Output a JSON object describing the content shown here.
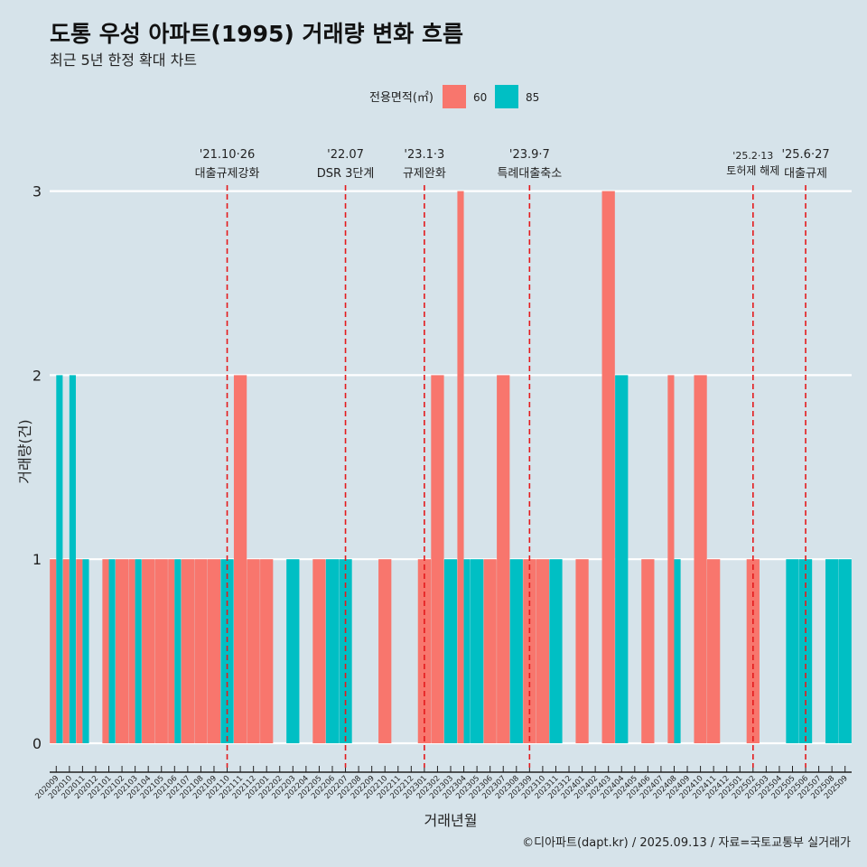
{
  "header": {
    "title": "도통 우성 아파트(1995) 거래량 변화 흐름",
    "subtitle": "최근 5년 한정 확대 차트"
  },
  "footer": {
    "caption": "©디아파트(dapt.kr) / 2025.09.13 / 자료=국토교통부 실거래가"
  },
  "colors": {
    "background": "#d6e3ea",
    "series_60": "#f8766d",
    "series_85": "#00bfc4",
    "event_line": "#e41a1c",
    "grid": "#ffffff"
  },
  "chart_data": {
    "type": "bar",
    "title": "도통 우성 아파트(1995) 거래량 변화 흐름",
    "subtitle": "최근 5년 한정 확대 차트",
    "xlabel": "거래년월",
    "ylabel": "거래량(건)",
    "ylim": [
      0,
      3
    ],
    "yticks": [
      0,
      1,
      2,
      3
    ],
    "grid": "horizontal",
    "legend": {
      "title": "전용면적(㎡)",
      "placement": "top",
      "entries": [
        "60",
        "85"
      ]
    },
    "categories": [
      "202009",
      "202010",
      "202011",
      "202012",
      "202101",
      "202102",
      "202103",
      "202104",
      "202105",
      "202106",
      "202107",
      "202108",
      "202109",
      "202110",
      "202111",
      "202112",
      "202201",
      "202202",
      "202203",
      "202204",
      "202205",
      "202206",
      "202207",
      "202208",
      "202209",
      "202210",
      "202211",
      "202212",
      "202301",
      "202302",
      "202303",
      "202304",
      "202305",
      "202306",
      "202307",
      "202308",
      "202309",
      "202310",
      "202311",
      "202312",
      "202401",
      "202402",
      "202403",
      "202404",
      "202405",
      "202406",
      "202407",
      "202408",
      "202409",
      "202410",
      "202411",
      "202412",
      "202501",
      "202502",
      "202503",
      "202504",
      "202505",
      "202506",
      "202507",
      "202508",
      "202509"
    ],
    "series": [
      {
        "name": "60",
        "values": [
          1,
          1,
          1,
          0,
          1,
          1,
          1,
          1,
          1,
          1,
          1,
          1,
          1,
          0,
          2,
          1,
          1,
          0,
          0,
          0,
          1,
          0,
          0,
          0,
          0,
          1,
          0,
          0,
          1,
          2,
          0,
          3,
          0,
          1,
          2,
          0,
          1,
          1,
          0,
          0,
          1,
          0,
          3,
          0,
          0,
          1,
          0,
          2,
          0,
          2,
          1,
          0,
          0,
          1,
          0,
          0,
          0,
          0,
          0,
          0,
          0
        ]
      },
      {
        "name": "85",
        "values": [
          2,
          2,
          1,
          0,
          1,
          0,
          1,
          0,
          0,
          1,
          0,
          0,
          0,
          1,
          0,
          0,
          0,
          0,
          1,
          0,
          0,
          1,
          1,
          0,
          0,
          0,
          0,
          0,
          0,
          0,
          1,
          1,
          1,
          0,
          0,
          1,
          0,
          0,
          1,
          0,
          0,
          0,
          0,
          2,
          0,
          0,
          0,
          1,
          0,
          0,
          0,
          0,
          0,
          0,
          0,
          0,
          1,
          1,
          0,
          1,
          1
        ]
      }
    ],
    "events": [
      {
        "date": "'21.10·26",
        "label": "대출규제강화",
        "category": "202110"
      },
      {
        "date": "'22.07",
        "label": "DSR 3단계",
        "category": "202207"
      },
      {
        "date": "'23.1·3",
        "label": "규제완화",
        "category": "202301"
      },
      {
        "date": "'23.9·7",
        "label": "특례대출축소",
        "category": "202309"
      },
      {
        "date": "'25.2·13",
        "label": "토허제 해제",
        "category": "202502"
      },
      {
        "date": "'25.6·27",
        "label": "대출규제",
        "category": "202506"
      }
    ]
  }
}
